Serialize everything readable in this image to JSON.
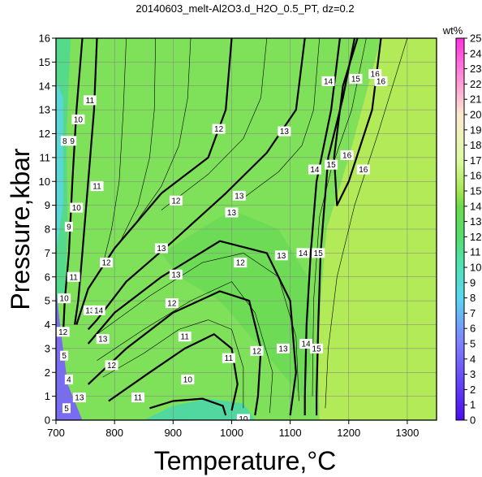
{
  "chart_data": {
    "type": "heatmap",
    "title": "20140603_melt-Al2O3.d_H2O_0.5_PT, dz=0.2",
    "xlabel": "Temperature,°C",
    "ylabel": "Pressure,kbar",
    "xlim": [
      700,
      1350
    ],
    "ylim": [
      0,
      16
    ],
    "xticks": [
      700,
      800,
      900,
      1000,
      1100,
      1200,
      1300
    ],
    "yticks": [
      0,
      1,
      2,
      3,
      4,
      5,
      6,
      7,
      8,
      9,
      10,
      11,
      12,
      13,
      14,
      15,
      16
    ],
    "grid": true,
    "colorbar": {
      "label": "wt%",
      "min": 0,
      "max": 25,
      "ticks": [
        0,
        1,
        2,
        3,
        4,
        5,
        6,
        7,
        8,
        9,
        10,
        11,
        12,
        13,
        14,
        15,
        16,
        17,
        18,
        19,
        20,
        21,
        22,
        23,
        24,
        25
      ],
      "stops": [
        {
          "value": 0,
          "color": "#4b0cf0"
        },
        {
          "value": 5,
          "color": "#7f7fff"
        },
        {
          "value": 8,
          "color": "#5ad7f0"
        },
        {
          "value": 10,
          "color": "#4ee3b8"
        },
        {
          "value": 12,
          "color": "#55dd6e"
        },
        {
          "value": 14,
          "color": "#6cdb4a"
        },
        {
          "value": 15,
          "color": "#a6e650"
        },
        {
          "value": 17,
          "color": "#dcfca0"
        },
        {
          "value": 20,
          "color": "#ffe8d0"
        },
        {
          "value": 25,
          "color": "#ff30e0"
        }
      ]
    },
    "regions": [
      {
        "value": 15.5,
        "color": "#b2ea58",
        "polygon": [
          [
            1150,
            0
          ],
          [
            1350,
            0
          ],
          [
            1350,
            16
          ],
          [
            1255,
            16
          ],
          [
            1200,
            11
          ],
          [
            1162,
            8
          ],
          [
            1152,
            5
          ],
          [
            1148,
            2
          ]
        ]
      },
      {
        "value": 12.2,
        "color": "#7fe05a",
        "polygon": [
          [
            720,
            10
          ],
          [
            720,
            16
          ],
          [
            1255,
            16
          ],
          [
            1200,
            11
          ],
          [
            1162,
            8
          ],
          [
            1152,
            5
          ],
          [
            1148,
            2
          ],
          [
            1150,
            0
          ],
          [
            760,
            0
          ],
          [
            740,
            3
          ],
          [
            735,
            6
          ],
          [
            730,
            9
          ]
        ]
      },
      {
        "value": 13.2,
        "color": "#6ddb55",
        "polygon": [
          [
            880,
            7
          ],
          [
            1000,
            8.8
          ],
          [
            1080,
            8
          ],
          [
            1130,
            6
          ],
          [
            1140,
            3
          ],
          [
            1120,
            1
          ],
          [
            1050,
            3
          ],
          [
            980,
            5
          ],
          [
            910,
            6
          ]
        ]
      },
      {
        "value": 11,
        "color": "#55d98a",
        "polygon": [
          [
            700,
            16
          ],
          [
            725,
            16
          ],
          [
            718,
            12
          ],
          [
            720,
            8
          ],
          [
            715,
            5
          ],
          [
            700,
            4.8
          ]
        ]
      },
      {
        "value": 9,
        "color": "#5ad7d8",
        "polygon": [
          [
            700,
            14.2
          ],
          [
            712,
            13.5
          ],
          [
            712,
            9
          ],
          [
            706,
            8
          ],
          [
            700,
            7
          ]
        ]
      },
      {
        "value": 10.8,
        "color": "#50d8a0",
        "polygon": [
          [
            850,
            0
          ],
          [
            900,
            0.6
          ],
          [
            960,
            0.9
          ],
          [
            1020,
            0.7
          ],
          [
            1040,
            0
          ],
          [
            1000,
            0
          ]
        ]
      },
      {
        "value": 5,
        "color": "#7a6cf0",
        "polygon": [
          [
            700,
            0
          ],
          [
            745,
            0
          ],
          [
            735,
            0.6
          ],
          [
            720,
            1.5
          ],
          [
            712,
            3
          ],
          [
            706,
            4.2
          ],
          [
            700,
            5.5
          ]
        ]
      }
    ],
    "contours": [
      {
        "level": 10,
        "major": true,
        "points": [
          [
            745,
            16
          ],
          [
            735,
            13
          ],
          [
            728,
            10
          ],
          [
            722,
            7
          ],
          [
            715,
            5
          ],
          [
            712,
            3.5
          ]
        ]
      },
      {
        "level": 11,
        "major": true,
        "points": [
          [
            770,
            16
          ],
          [
            765,
            13
          ],
          [
            755,
            10
          ],
          [
            745,
            7
          ],
          [
            738,
            5
          ],
          [
            732,
            4
          ]
        ]
      },
      {
        "level": 12,
        "major": true,
        "points": [
          [
            1000,
            16
          ],
          [
            990,
            13
          ],
          [
            960,
            11
          ],
          [
            880,
            9.5
          ],
          [
            800,
            7.2
          ],
          [
            755,
            5.5
          ],
          [
            735,
            4
          ]
        ]
      },
      {
        "level": 13,
        "major": true,
        "points": [
          [
            1125,
            16
          ],
          [
            1110,
            13
          ],
          [
            1060,
            11.2
          ],
          [
            990,
            9.5
          ],
          [
            900,
            7.5
          ],
          [
            820,
            5.8
          ],
          [
            770,
            4.2
          ],
          [
            755,
            3.8
          ]
        ]
      },
      {
        "level": 13,
        "major": true,
        "points": [
          [
            755,
            3.2
          ],
          [
            800,
            4.5
          ],
          [
            880,
            6
          ],
          [
            980,
            7.5
          ],
          [
            1060,
            7
          ],
          [
            1100,
            5
          ],
          [
            1110,
            2
          ],
          [
            1100,
            0.2
          ]
        ]
      },
      {
        "level": 12,
        "major": true,
        "points": [
          [
            755,
            1.5
          ],
          [
            820,
            3
          ],
          [
            900,
            4.5
          ],
          [
            980,
            5.4
          ],
          [
            1030,
            5
          ],
          [
            1050,
            3
          ],
          [
            1045,
            1
          ],
          [
            1040,
            0.2
          ]
        ]
      },
      {
        "level": 11,
        "major": true,
        "points": [
          [
            790,
            0.8
          ],
          [
            860,
            2
          ],
          [
            920,
            3
          ],
          [
            970,
            3.6
          ],
          [
            1000,
            3
          ],
          [
            1010,
            1.5
          ],
          [
            1000,
            0.4
          ]
        ]
      },
      {
        "level": 10,
        "major": true,
        "points": [
          [
            860,
            0.5
          ],
          [
            900,
            0.8
          ],
          [
            950,
            0.9
          ],
          [
            985,
            0.6
          ],
          [
            990,
            0.2
          ]
        ]
      },
      {
        "level": 14,
        "major": true,
        "points": [
          [
            1185,
            16
          ],
          [
            1170,
            13
          ],
          [
            1145,
            10
          ],
          [
            1135,
            7
          ],
          [
            1128,
            4
          ],
          [
            1125,
            1
          ],
          [
            1125,
            0.2
          ]
        ]
      },
      {
        "level": 15,
        "major": true,
        "points": [
          [
            1210,
            16
          ],
          [
            1190,
            13.5
          ],
          [
            1165,
            11
          ],
          [
            1152,
            7
          ],
          [
            1148,
            4
          ],
          [
            1145,
            1
          ],
          [
            1145,
            0.2
          ]
        ]
      },
      {
        "level": 16,
        "major": true,
        "points": [
          [
            1255,
            16
          ],
          [
            1240,
            13
          ],
          [
            1200,
            10
          ],
          [
            1180,
            9
          ],
          [
            1175,
            11
          ],
          [
            1190,
            14
          ],
          [
            1215,
            16
          ]
        ]
      },
      {
        "level": 12,
        "major": false,
        "points": [
          [
            820,
            16
          ],
          [
            815,
            13
          ],
          [
            808,
            10
          ],
          [
            795,
            8
          ],
          [
            780,
            6.5
          ]
        ]
      },
      {
        "level": 12,
        "major": false,
        "points": [
          [
            870,
            16
          ],
          [
            868,
            13
          ],
          [
            860,
            11
          ],
          [
            840,
            9
          ],
          [
            810,
            7.5
          ]
        ]
      },
      {
        "level": 12,
        "major": false,
        "points": [
          [
            930,
            16
          ],
          [
            925,
            13.5
          ],
          [
            910,
            11.5
          ],
          [
            880,
            9.8
          ],
          [
            840,
            8.4
          ]
        ]
      },
      {
        "level": 13,
        "major": false,
        "points": [
          [
            1060,
            16
          ],
          [
            1050,
            13.5
          ],
          [
            1020,
            11.8
          ],
          [
            960,
            10.3
          ],
          [
            880,
            8.8
          ]
        ]
      },
      {
        "level": 14,
        "major": false,
        "points": [
          [
            1150,
            16
          ],
          [
            1140,
            13
          ],
          [
            1120,
            11.5
          ],
          [
            1080,
            10.4
          ],
          [
            1020,
            9.3
          ]
        ]
      },
      {
        "level": 15,
        "major": false,
        "points": [
          [
            1230,
            16
          ],
          [
            1205,
            13
          ],
          [
            1170,
            10.5
          ],
          [
            1150,
            8.5
          ],
          [
            1140,
            5
          ],
          [
            1138,
            1
          ]
        ]
      },
      {
        "level": 12,
        "major": false,
        "points": [
          [
            770,
            2.5
          ],
          [
            850,
            3.8
          ],
          [
            930,
            5
          ],
          [
            1000,
            5.8
          ],
          [
            1040,
            4.5
          ],
          [
            1070,
            2
          ],
          [
            1065,
            0.3
          ]
        ]
      },
      {
        "level": 11,
        "major": false,
        "points": [
          [
            780,
            1.8
          ],
          [
            850,
            2.8
          ],
          [
            910,
            3.8
          ],
          [
            960,
            4.2
          ],
          [
            1000,
            3.8
          ],
          [
            1020,
            2.2
          ],
          [
            1020,
            0.5
          ]
        ]
      },
      {
        "level": 13,
        "major": false,
        "points": [
          [
            770,
            3.6
          ],
          [
            860,
            5.2
          ],
          [
            950,
            6.6
          ],
          [
            1020,
            7
          ],
          [
            1080,
            6
          ],
          [
            1110,
            3.5
          ],
          [
            1115,
            0.8
          ]
        ]
      },
      {
        "level": 14,
        "major": false,
        "points": [
          [
            1300,
            16
          ],
          [
            1250,
            12
          ],
          [
            1210,
            9
          ],
          [
            1180,
            6
          ],
          [
            1165,
            3
          ],
          [
            1160,
            0.5
          ]
        ]
      }
    ],
    "contour_labels": [
      {
        "text": "11",
        "x": 758,
        "y": 13.4
      },
      {
        "text": "10",
        "x": 738,
        "y": 12.6
      },
      {
        "text": "9",
        "x": 728,
        "y": 11.7
      },
      {
        "text": "8",
        "x": 715,
        "y": 11.7
      },
      {
        "text": "12",
        "x": 978,
        "y": 12.2
      },
      {
        "text": "13",
        "x": 1090,
        "y": 12.1
      },
      {
        "text": "14",
        "x": 1165,
        "y": 14.2
      },
      {
        "text": "15",
        "x": 1212,
        "y": 14.3
      },
      {
        "text": "16",
        "x": 1245,
        "y": 14.5
      },
      {
        "text": "16",
        "x": 1255,
        "y": 14.2
      },
      {
        "text": "16",
        "x": 1197,
        "y": 11.1
      },
      {
        "text": "16",
        "x": 1225,
        "y": 10.5
      },
      {
        "text": "15",
        "x": 1170,
        "y": 10.7
      },
      {
        "text": "14",
        "x": 1142,
        "y": 10.5
      },
      {
        "text": "11",
        "x": 770,
        "y": 9.8
      },
      {
        "text": "10",
        "x": 735,
        "y": 8.9
      },
      {
        "text": "9",
        "x": 722,
        "y": 8.1
      },
      {
        "text": "12",
        "x": 905,
        "y": 9.2
      },
      {
        "text": "13",
        "x": 1013,
        "y": 9.4
      },
      {
        "text": "13",
        "x": 1000,
        "y": 8.7
      },
      {
        "text": "12",
        "x": 786,
        "y": 6.6
      },
      {
        "text": "11",
        "x": 730,
        "y": 6.0
      },
      {
        "text": "13",
        "x": 880,
        "y": 7.2
      },
      {
        "text": "13",
        "x": 905,
        "y": 6.1
      },
      {
        "text": "12",
        "x": 1015,
        "y": 6.6
      },
      {
        "text": "13",
        "x": 1085,
        "y": 6.9
      },
      {
        "text": "14",
        "x": 1122,
        "y": 7.0
      },
      {
        "text": "15",
        "x": 1148,
        "y": 7.0
      },
      {
        "text": "10",
        "x": 714,
        "y": 5.1
      },
      {
        "text": "13",
        "x": 758,
        "y": 4.6
      },
      {
        "text": "14",
        "x": 773,
        "y": 4.6
      },
      {
        "text": "12",
        "x": 898,
        "y": 4.9
      },
      {
        "text": "12",
        "x": 712,
        "y": 3.7
      },
      {
        "text": "13",
        "x": 780,
        "y": 3.4
      },
      {
        "text": "11",
        "x": 920,
        "y": 3.5
      },
      {
        "text": "12",
        "x": 1043,
        "y": 2.9
      },
      {
        "text": "13",
        "x": 1088,
        "y": 3.0
      },
      {
        "text": "14",
        "x": 1127,
        "y": 3.2
      },
      {
        "text": "15",
        "x": 1145,
        "y": 3.0
      },
      {
        "text": "5",
        "x": 714,
        "y": 2.7
      },
      {
        "text": "12",
        "x": 795,
        "y": 2.3
      },
      {
        "text": "11",
        "x": 995,
        "y": 2.6
      },
      {
        "text": "4",
        "x": 722,
        "y": 1.7
      },
      {
        "text": "10",
        "x": 925,
        "y": 1.7
      },
      {
        "text": "11",
        "x": 840,
        "y": 0.95
      },
      {
        "text": "13",
        "x": 740,
        "y": 0.95
      },
      {
        "text": "5",
        "x": 718,
        "y": 0.5
      },
      {
        "text": "10",
        "x": 1020,
        "y": 0.05
      }
    ]
  }
}
